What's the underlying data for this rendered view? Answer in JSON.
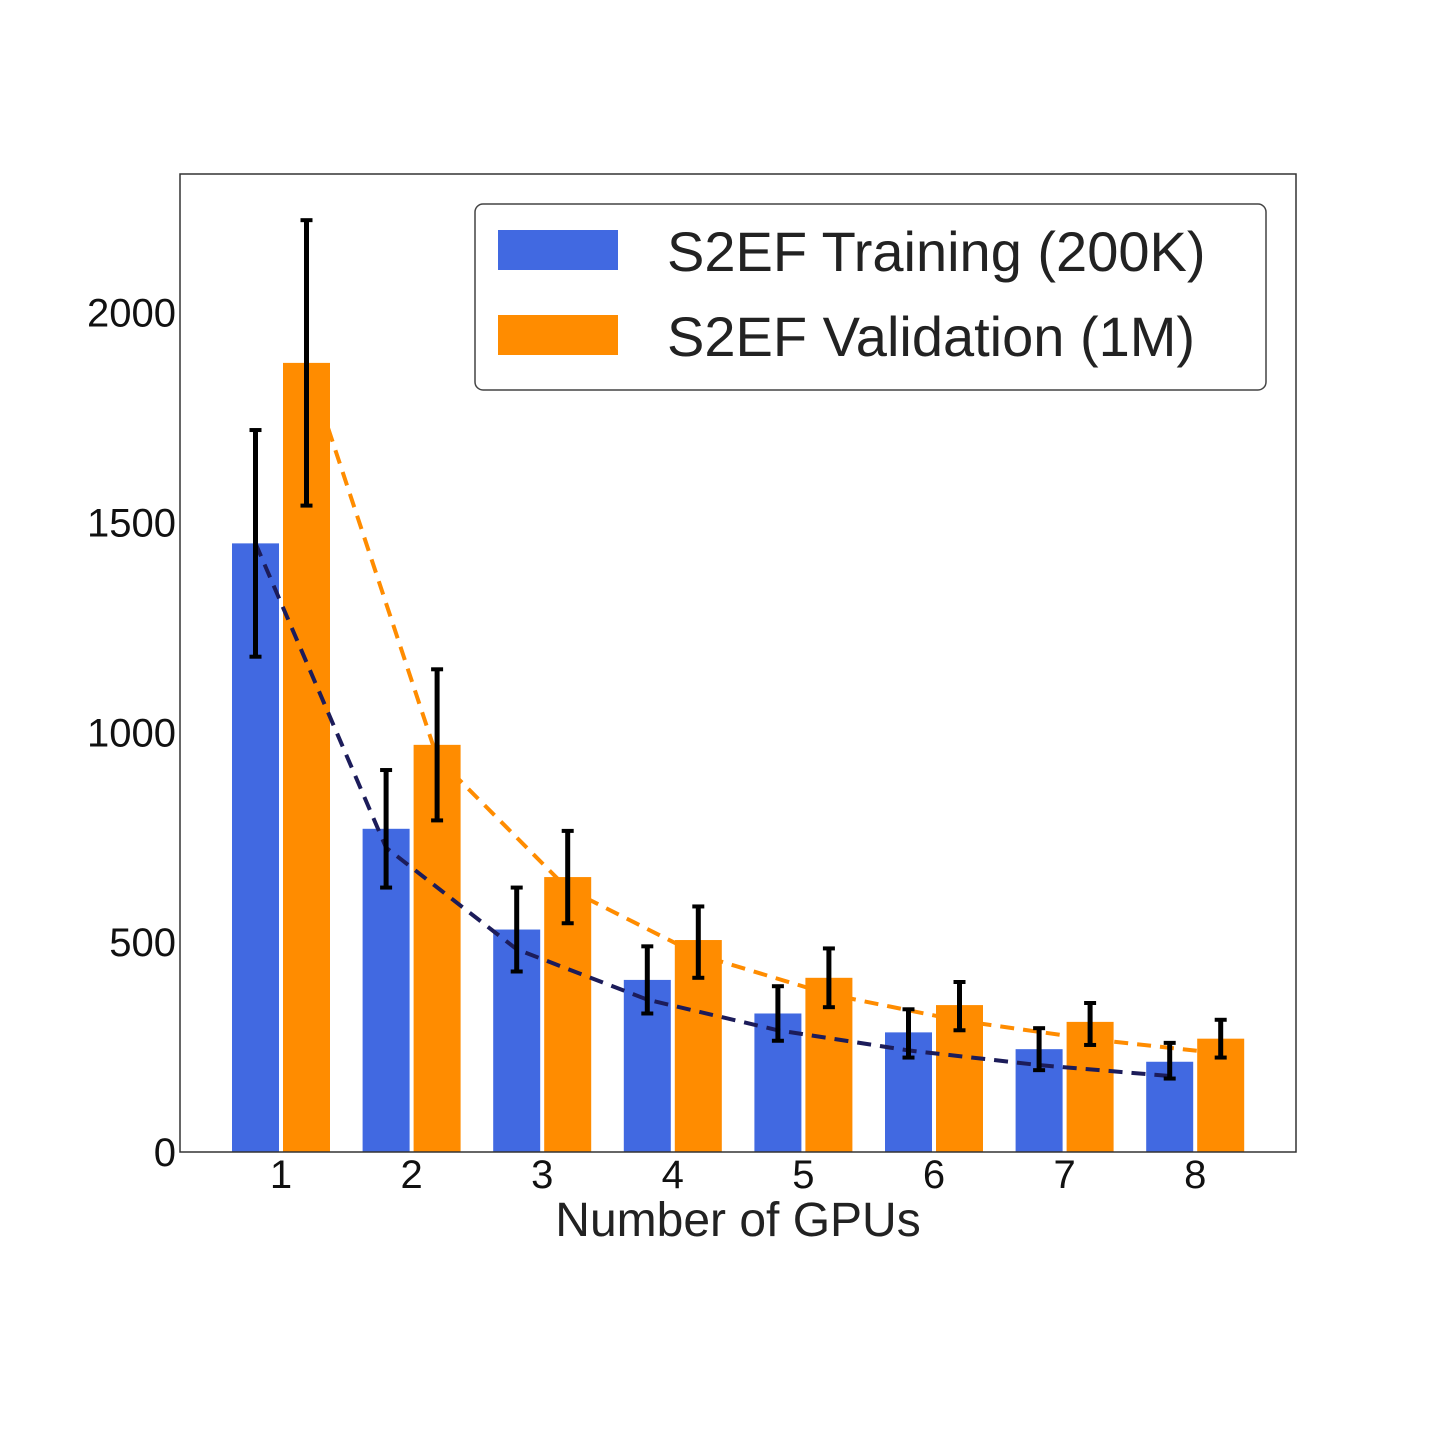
{
  "chart_data": {
    "type": "bar",
    "title": "",
    "xlabel": "Number of GPUs",
    "ylabel": "",
    "categories": [
      "1",
      "2",
      "3",
      "4",
      "5",
      "6",
      "7",
      "8"
    ],
    "ylim": [
      0,
      2330
    ],
    "yticks": [
      0,
      500,
      1000,
      1500,
      2000
    ],
    "grid": false,
    "legend_position": "top-right",
    "series": [
      {
        "name": "S2EF Training (200K)",
        "color": "#4169e1",
        "values": [
          1450,
          770,
          530,
          410,
          330,
          285,
          245,
          215
        ],
        "error_low": [
          1180,
          630,
          430,
          330,
          265,
          225,
          195,
          175
        ],
        "error_high": [
          1720,
          910,
          630,
          490,
          395,
          340,
          295,
          260
        ],
        "trend_color": "#1c1c5a",
        "trend_values": [
          1450,
          725,
          483,
          363,
          290,
          242,
          207,
          181
        ]
      },
      {
        "name": "S2EF Validation (1M)",
        "color": "#ff8c00",
        "values": [
          1880,
          970,
          655,
          505,
          415,
          350,
          310,
          270
        ],
        "error_low": [
          1540,
          790,
          545,
          415,
          345,
          290,
          255,
          225
        ],
        "error_high": [
          2220,
          1150,
          765,
          585,
          485,
          405,
          355,
          315
        ],
        "trend_color": "#ff8c00",
        "trend_values": [
          1880,
          940,
          627,
          470,
          376,
          313,
          269,
          235
        ]
      }
    ]
  }
}
